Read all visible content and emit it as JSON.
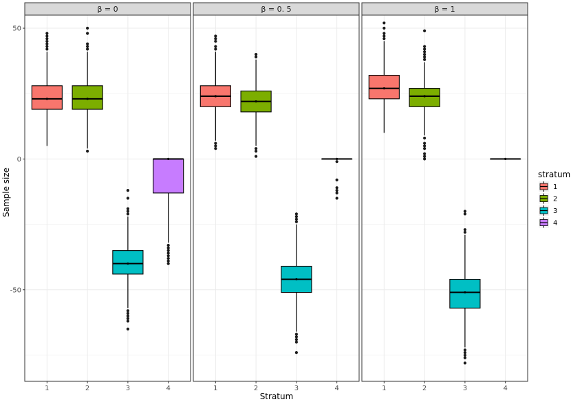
{
  "chart_data": {
    "type": "boxplot",
    "xlabel": "Stratum",
    "ylabel": "Sample size",
    "ylim": [
      -85,
      55
    ],
    "yticks": [
      50,
      0,
      -50
    ],
    "ytick_labels": [
      "50",
      "0",
      "-50"
    ],
    "categories": [
      "1",
      "2",
      "3",
      "4"
    ],
    "legend": {
      "title": "stratum",
      "entries": [
        {
          "label": "1",
          "color": "#F8766D"
        },
        {
          "label": "2",
          "color": "#7CAE00"
        },
        {
          "label": "3",
          "color": "#00BFC4"
        },
        {
          "label": "4",
          "color": "#C77CFF"
        }
      ],
      "position": "right"
    },
    "panels": [
      {
        "title": "β = 0",
        "boxes": [
          {
            "stratum": "1",
            "q1": 19,
            "median": 23,
            "q3": 28,
            "whisker_low": 5,
            "whisker_high": 41,
            "mean": 23,
            "outliers": [
              42,
              43,
              44,
              45,
              46,
              47,
              48
            ]
          },
          {
            "stratum": "2",
            "q1": 19,
            "median": 23,
            "q3": 28,
            "whisker_low": 4,
            "whisker_high": 41,
            "mean": 23,
            "outliers": [
              3,
              42,
              43,
              44,
              48,
              50
            ]
          },
          {
            "stratum": "3",
            "q1": -44,
            "median": -40,
            "q3": -35,
            "whisker_low": -57,
            "whisker_high": -22,
            "mean": -40,
            "outliers": [
              -12,
              -15,
              -19,
              -20,
              -21,
              -58,
              -59,
              -60,
              -61,
              -62,
              -65
            ]
          },
          {
            "stratum": "4",
            "q1": -13,
            "median": 0,
            "q3": 0,
            "whisker_low": -32,
            "whisker_high": 0,
            "mean": 0,
            "outliers": [
              -33,
              -34,
              -35,
              -36,
              -37,
              -38,
              -39,
              -40
            ]
          }
        ]
      },
      {
        "title": "β = 0. 5",
        "boxes": [
          {
            "stratum": "1",
            "q1": 20,
            "median": 24,
            "q3": 28,
            "whisker_low": 7,
            "whisker_high": 41,
            "mean": 24,
            "outliers": [
              4,
              5,
              6,
              42,
              43,
              45,
              46,
              47
            ]
          },
          {
            "stratum": "2",
            "q1": 18,
            "median": 22,
            "q3": 26,
            "whisker_low": 5,
            "whisker_high": 38,
            "mean": 22,
            "outliers": [
              1,
              3,
              4,
              39,
              40
            ]
          },
          {
            "stratum": "3",
            "q1": -51,
            "median": -46,
            "q3": -41,
            "whisker_low": -66,
            "whisker_high": -25,
            "mean": -46,
            "outliers": [
              -21,
              -22,
              -23,
              -24,
              -67,
              -68,
              -69,
              -70,
              -74
            ]
          },
          {
            "stratum": "4",
            "q1": 0,
            "median": 0,
            "q3": 0,
            "whisker_low": 0,
            "whisker_high": 0,
            "mean": 0,
            "outliers": [
              -1,
              -8,
              -11,
              -12,
              -13,
              -15
            ]
          }
        ]
      },
      {
        "title": "β = 1",
        "boxes": [
          {
            "stratum": "1",
            "q1": 23,
            "median": 27,
            "q3": 32,
            "whisker_low": 10,
            "whisker_high": 45,
            "mean": 27,
            "outliers": [
              46,
              47,
              48,
              50,
              52
            ]
          },
          {
            "stratum": "2",
            "q1": 20,
            "median": 24,
            "q3": 27,
            "whisker_low": 9,
            "whisker_high": 37,
            "mean": 24,
            "outliers": [
              0,
              1,
              2,
              4,
              5,
              6,
              8,
              38,
              39,
              40,
              41,
              42,
              43,
              49
            ]
          },
          {
            "stratum": "3",
            "q1": -57,
            "median": -51,
            "q3": -46,
            "whisker_low": -72,
            "whisker_high": -29,
            "mean": -51,
            "outliers": [
              -20,
              -21,
              -27,
              -28,
              -73,
              -74,
              -75,
              -76,
              -78
            ]
          },
          {
            "stratum": "4",
            "q1": 0,
            "median": 0,
            "q3": 0,
            "whisker_low": 0,
            "whisker_high": 0,
            "mean": 0,
            "outliers": []
          }
        ]
      }
    ]
  }
}
